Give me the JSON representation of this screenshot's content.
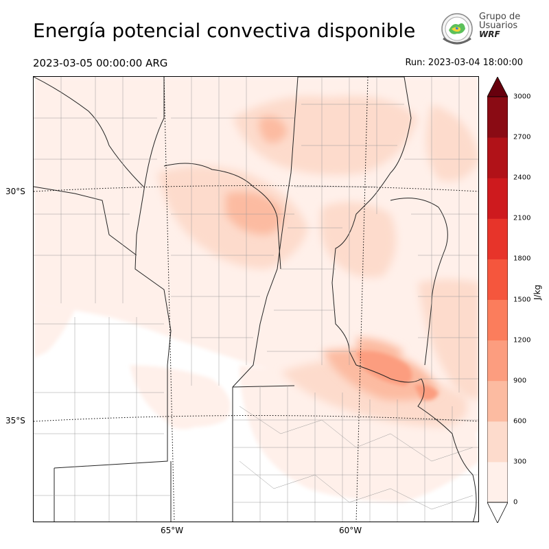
{
  "header": {
    "title": "Energía potencial convectiva disponible",
    "valid_time": "2023-03-05 00:00:00 ARG",
    "run_time": "Run: 2023-03-04 18:00:00"
  },
  "logo": {
    "line1": "Grupo de",
    "line2": "Usuarios",
    "line3": "WRF"
  },
  "map": {
    "lat_labels": [
      "30°S",
      "35°S"
    ],
    "lon_labels": [
      "65°W",
      "60°W"
    ]
  },
  "colorbar": {
    "unit": "J/kg",
    "ticks": [
      "0",
      "300",
      "600",
      "900",
      "1200",
      "1500",
      "1800",
      "2100",
      "2400",
      "2700",
      "3000"
    ],
    "colors": [
      "#fff0ea",
      "#fddbcc",
      "#fcbba1",
      "#fc9d7f",
      "#fb7d5c",
      "#f5563d",
      "#e7342a",
      "#ce1a1e",
      "#b11218",
      "#8a0b14"
    ],
    "over_color": "#67000d",
    "under_color": "#ffffff"
  }
}
